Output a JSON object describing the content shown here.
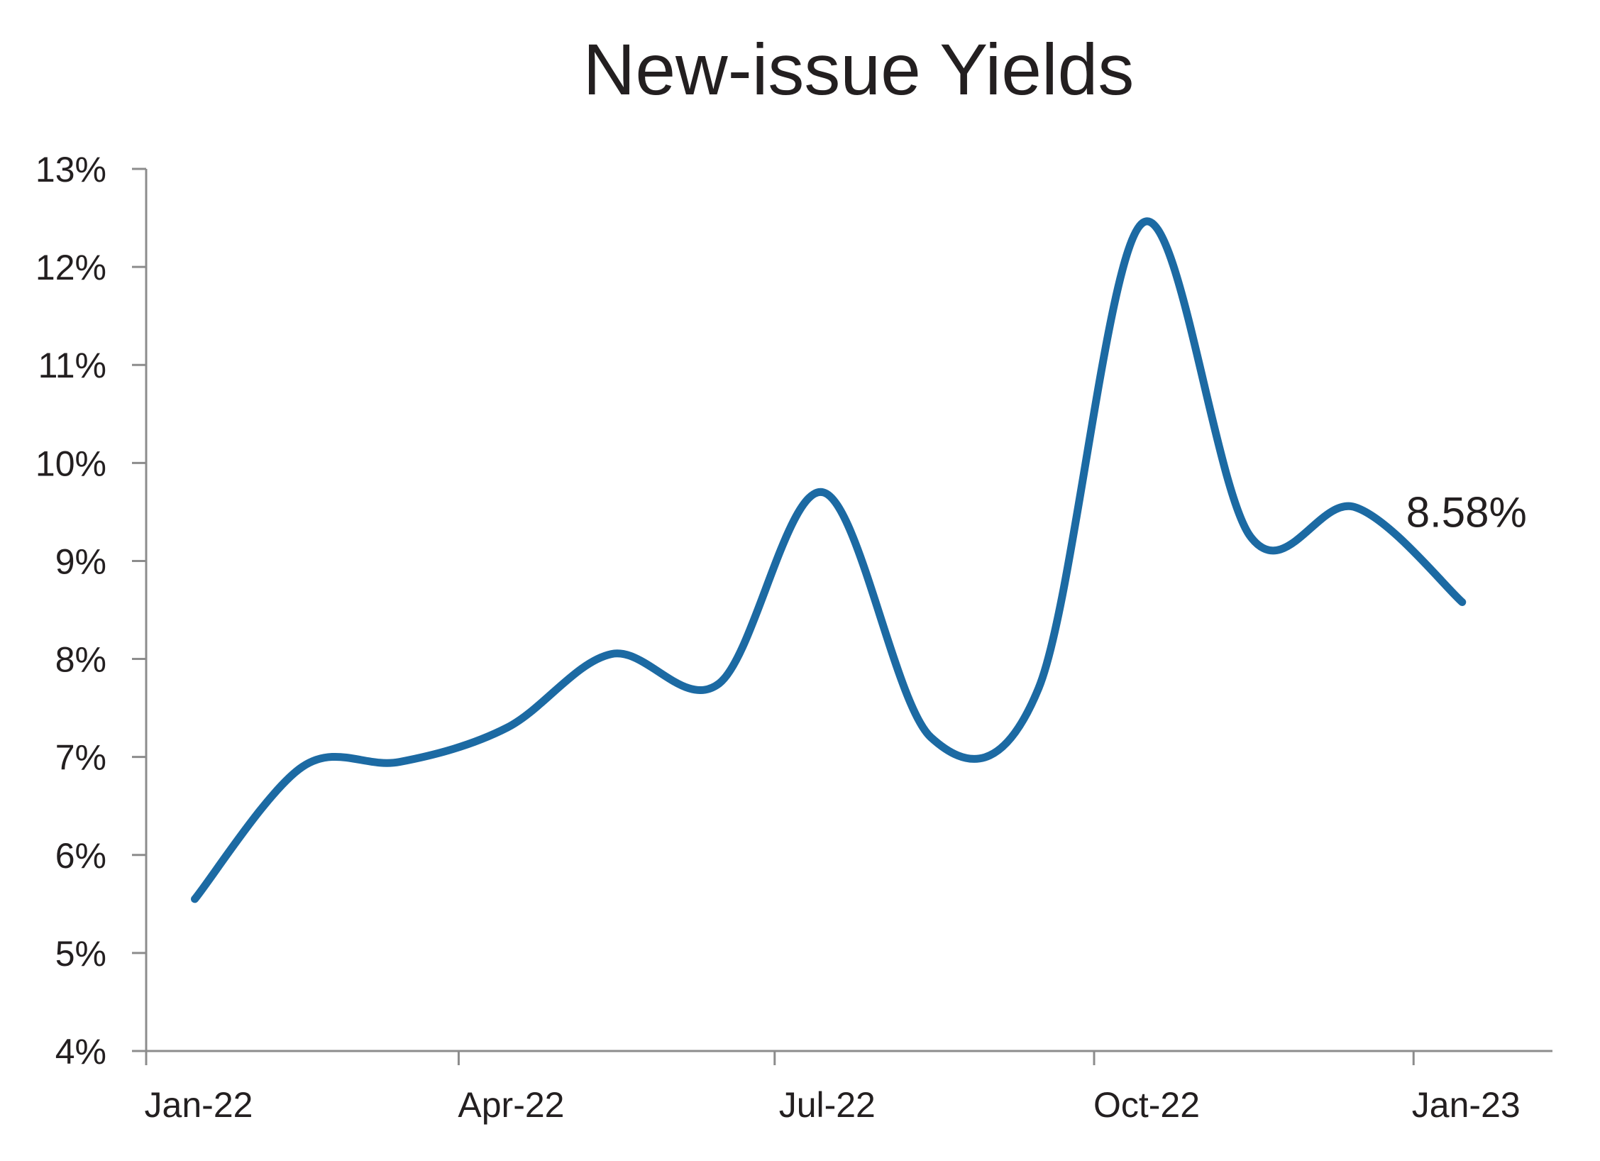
{
  "chart_data": {
    "type": "line",
    "title": "New-issue Yields",
    "xlabel": "",
    "ylabel": "",
    "x": [
      "2022-01-15",
      "2022-02-15",
      "2022-03-15",
      "2022-04-15",
      "2022-05-15",
      "2022-06-15",
      "2022-07-15",
      "2022-08-15",
      "2022-09-15",
      "2022-10-15",
      "2022-11-15",
      "2022-12-15",
      "2023-01-15"
    ],
    "x_tick_labels": [
      "Jan-22",
      "Apr-22",
      "Jul-22",
      "Oct-22",
      "Jan-23"
    ],
    "y_tick_labels": [
      "4%",
      "5%",
      "6%",
      "7%",
      "8%",
      "9%",
      "10%",
      "11%",
      "12%",
      "13%"
    ],
    "ylim": [
      4,
      13
    ],
    "y_unit": "%",
    "series": [
      {
        "values": [
          5.55,
          6.9,
          6.95,
          7.3,
          8.05,
          7.75,
          9.7,
          7.2,
          7.7,
          12.45,
          9.25,
          9.55,
          8.58
        ],
        "color": "#1c6aa3"
      }
    ],
    "annotations": [
      {
        "text": "8.58%",
        "series_index": 0,
        "point_index": 12
      }
    ],
    "grid": false,
    "legend": "none"
  }
}
